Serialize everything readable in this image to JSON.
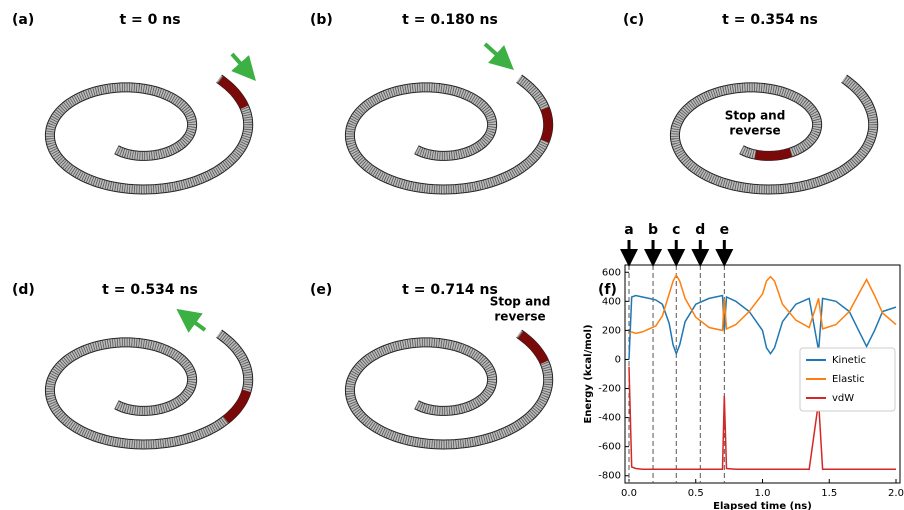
{
  "panels": [
    {
      "label": "(a)",
      "title": "t = 0 ns"
    },
    {
      "label": "(b)",
      "title": "t = 0.180 ns"
    },
    {
      "label": "(c)",
      "title": "t = 0.354 ns",
      "annotation": [
        "Stop and",
        "reverse"
      ]
    },
    {
      "label": "(d)",
      "title": "t = 0.534 ns"
    },
    {
      "label": "(e)",
      "title": "t = 0.714 ns",
      "annotation": [
        "Stop and",
        "reverse"
      ]
    }
  ],
  "chart_data": {
    "type": "line",
    "panel_label": "(f)",
    "xlabel": "Elapsed time (ns)",
    "ylabel": "Energy (kcal/mol)",
    "x": [
      0,
      0.02,
      0.05,
      0.1,
      0.15,
      0.2,
      0.25,
      0.3,
      0.33,
      0.354,
      0.38,
      0.42,
      0.5,
      0.6,
      0.7,
      0.714,
      0.73,
      0.8,
      0.9,
      1.0,
      1.03,
      1.06,
      1.09,
      1.15,
      1.25,
      1.35,
      1.42,
      1.45,
      1.55,
      1.65,
      1.72,
      1.78,
      1.84,
      1.9,
      2.0
    ],
    "series": [
      {
        "name": "Kinetic",
        "color": "#1f77b4",
        "values": [
          0,
          430,
          440,
          430,
          420,
          410,
          380,
          250,
          100,
          40,
          100,
          260,
          380,
          420,
          440,
          200,
          430,
          400,
          330,
          200,
          80,
          40,
          80,
          260,
          380,
          420,
          60,
          420,
          400,
          330,
          200,
          90,
          200,
          330,
          360
        ]
      },
      {
        "name": "Elastic",
        "color": "#ff7f0e",
        "values": [
          180,
          190,
          180,
          190,
          210,
          230,
          300,
          450,
          540,
          580,
          540,
          420,
          290,
          220,
          200,
          420,
          210,
          240,
          330,
          450,
          540,
          570,
          540,
          380,
          270,
          220,
          420,
          210,
          240,
          330,
          450,
          550,
          440,
          320,
          240
        ]
      },
      {
        "name": "vdW",
        "color": "#d62728",
        "values": [
          -50,
          -740,
          -750,
          -755,
          -755,
          -755,
          -755,
          -755,
          -755,
          -755,
          -755,
          -755,
          -755,
          -755,
          -755,
          -250,
          -750,
          -755,
          -755,
          -755,
          -755,
          -755,
          -755,
          -755,
          -755,
          -755,
          -290,
          -755,
          -755,
          -755,
          -755,
          -755,
          -755,
          -755,
          -755
        ]
      }
    ],
    "markers": [
      {
        "label": "a",
        "x": 0
      },
      {
        "label": "b",
        "x": 0.18
      },
      {
        "label": "c",
        "x": 0.354
      },
      {
        "label": "d",
        "x": 0.534
      },
      {
        "label": "e",
        "x": 0.714
      }
    ],
    "xlim": [
      -0.03,
      2.03
    ],
    "xticks": [
      {
        "value": 0,
        "label": "0.0"
      },
      {
        "value": 0.5,
        "label": "0.5"
      },
      {
        "value": 1,
        "label": "1.0"
      },
      {
        "value": 1.5,
        "label": "1.5"
      },
      {
        "value": 2,
        "label": "2.0"
      }
    ],
    "ylim": [
      -850,
      650
    ],
    "yticks": [
      -800,
      -600,
      -400,
      -200,
      0,
      200,
      400,
      600
    ],
    "legend": "right"
  }
}
